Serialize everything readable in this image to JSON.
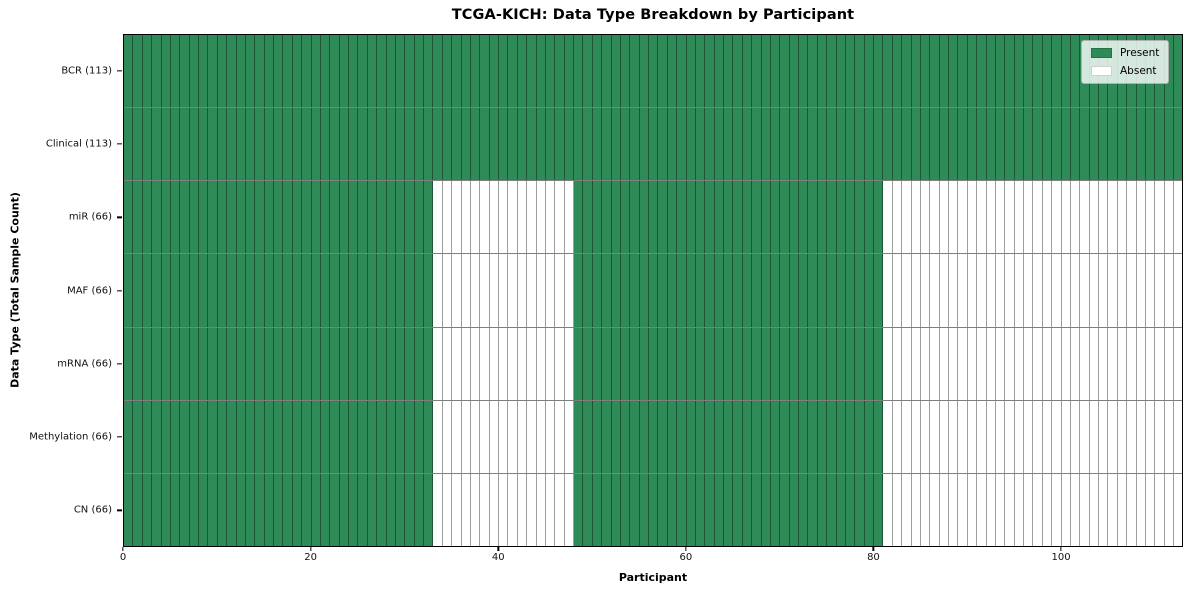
{
  "chart_data": {
    "type": "heatmap",
    "title": "TCGA-KICH: Data Type Breakdown by Participant",
    "xlabel": "Participant",
    "ylabel": "Data Type (Total Sample Count)",
    "x_ticks": [
      0,
      20,
      40,
      60,
      80,
      100
    ],
    "x_range": [
      0,
      113
    ],
    "n_participants": 113,
    "grid": false,
    "legend_position": "upper right",
    "legend": [
      {
        "label": "Present",
        "color": "#2e8b57"
      },
      {
        "label": "Absent",
        "color": "#ffffff"
      }
    ],
    "colors": {
      "present": "#2e8b57",
      "absent": "#ffffff",
      "cell_edge": "rgba(0,0,0,0.38)",
      "row_edge": "rgba(0,0,0,0.5)",
      "axes_edge": "#000000"
    },
    "rows": [
      {
        "label": "BCR (113)",
        "data_type": "BCR",
        "total_samples": 113,
        "present_ranges": [
          [
            0,
            113
          ]
        ]
      },
      {
        "label": "Clinical (113)",
        "data_type": "Clinical",
        "total_samples": 113,
        "present_ranges": [
          [
            0,
            113
          ]
        ]
      },
      {
        "label": "miR (66)",
        "data_type": "miR",
        "total_samples": 66,
        "present_ranges": [
          [
            0,
            33
          ],
          [
            48,
            81
          ]
        ]
      },
      {
        "label": "MAF (66)",
        "data_type": "MAF",
        "total_samples": 66,
        "present_ranges": [
          [
            0,
            33
          ],
          [
            48,
            81
          ]
        ]
      },
      {
        "label": "mRNA (66)",
        "data_type": "mRNA",
        "total_samples": 66,
        "present_ranges": [
          [
            0,
            33
          ],
          [
            48,
            81
          ]
        ]
      },
      {
        "label": "Methylation (66)",
        "data_type": "Methylation",
        "total_samples": 66,
        "present_ranges": [
          [
            0,
            33
          ],
          [
            48,
            81
          ]
        ]
      },
      {
        "label": "CN (66)",
        "data_type": "CN",
        "total_samples": 66,
        "present_ranges": [
          [
            0,
            33
          ],
          [
            48,
            81
          ]
        ]
      }
    ]
  }
}
